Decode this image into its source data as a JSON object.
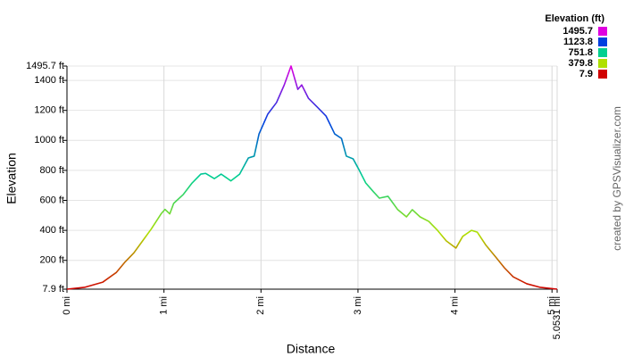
{
  "chart_data": {
    "type": "line",
    "xlabel": "Distance",
    "ylabel": "Elevation",
    "credit": "created by GPSVisualizer.com",
    "legend_title": "Elevation (ft)",
    "legend": [
      {
        "value": 1495.7,
        "color": "#e000e0"
      },
      {
        "value": 1123.8,
        "color": "#0040e0"
      },
      {
        "value": 751.8,
        "color": "#00d090"
      },
      {
        "value": 379.8,
        "color": "#b0e000"
      },
      {
        "value": 7.9,
        "color": "#d00000"
      }
    ],
    "x": [
      0,
      0.18,
      0.37,
      0.51,
      0.6,
      0.69,
      0.78,
      0.87,
      0.97,
      1.01,
      1.06,
      1.1,
      1.2,
      1.29,
      1.38,
      1.43,
      1.52,
      1.59,
      1.69,
      1.78,
      1.87,
      1.93,
      1.98,
      2.07,
      2.16,
      2.24,
      2.31,
      2.38,
      2.42,
      2.49,
      2.58,
      2.67,
      2.76,
      2.83,
      2.88,
      2.95,
      3.01,
      3.08,
      3.16,
      3.22,
      3.31,
      3.41,
      3.5,
      3.56,
      3.64,
      3.73,
      3.82,
      3.91,
      4.01,
      4.08,
      4.17,
      4.23,
      4.32,
      4.42,
      4.51,
      4.6,
      4.74,
      4.88,
      5.0531
    ],
    "values": [
      7.9,
      20,
      55,
      120,
      190,
      250,
      330,
      410,
      510,
      540,
      510,
      580,
      640,
      716,
      775,
      780,
      745,
      775,
      730,
      775,
      883,
      895,
      1043,
      1175,
      1252,
      1370,
      1495.7,
      1340,
      1370,
      1280,
      1222,
      1163,
      1043,
      1013,
      895,
      877,
      805,
      716,
      657,
      615,
      627,
      538,
      490,
      538,
      490,
      460,
      400,
      330,
      282,
      360,
      400,
      388,
      300,
      222,
      150,
      90,
      44,
      20,
      7.9
    ],
    "xlim": [
      0,
      5.0531
    ],
    "ylim": [
      7.9,
      1495.7
    ],
    "xticks": [
      {
        "value": 0,
        "label": "0 mi"
      },
      {
        "value": 1,
        "label": "1 mi"
      },
      {
        "value": 2,
        "label": "2 mi"
      },
      {
        "value": 3,
        "label": "3 mi"
      },
      {
        "value": 4,
        "label": "4 mi"
      },
      {
        "value": 5,
        "label": "5 mi"
      },
      {
        "value": 5.0531,
        "label": "5.0531 mi"
      }
    ],
    "yticks": [
      {
        "value": 7.9,
        "label": "7.9 ft"
      },
      {
        "value": 200,
        "label": "200 ft"
      },
      {
        "value": 400,
        "label": "400 ft"
      },
      {
        "value": 600,
        "label": "600 ft"
      },
      {
        "value": 800,
        "label": "800 ft"
      },
      {
        "value": 1000,
        "label": "1000 ft"
      },
      {
        "value": 1200,
        "label": "1200 ft"
      },
      {
        "value": 1400,
        "label": "1400 ft"
      },
      {
        "value": 1495.7,
        "label": "1495.7 ft"
      }
    ],
    "grid": true
  }
}
